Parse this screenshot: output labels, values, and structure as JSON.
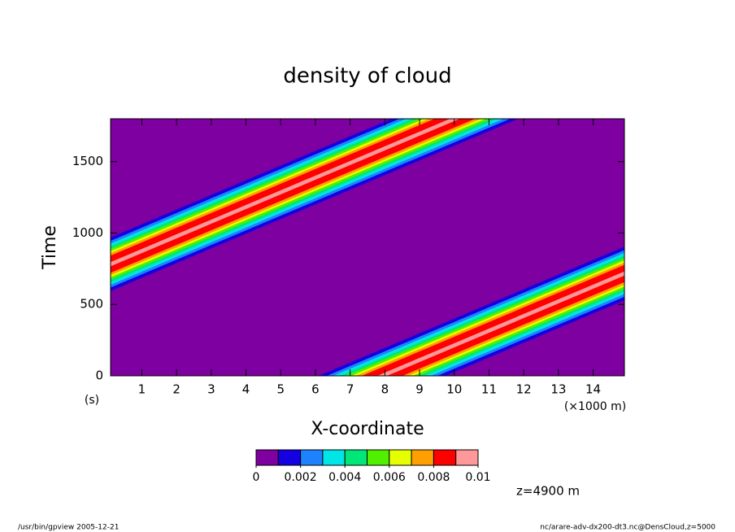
{
  "chart_data": {
    "type": "contour",
    "title": "density of cloud",
    "x_label": "X-coordinate",
    "x_unit": "(×1000 m)",
    "y_label": "Time",
    "y_unit": "(s)",
    "xlim": [
      0.1,
      14.9
    ],
    "xticks": [
      1,
      2,
      3,
      4,
      5,
      6,
      7,
      8,
      9,
      10,
      11,
      12,
      13,
      14
    ],
    "ylim": [
      0,
      1800
    ],
    "yticks": [
      0,
      500,
      1000,
      1500
    ],
    "colorbar": {
      "levels": [
        0,
        0.001,
        0.002,
        0.003,
        0.004,
        0.005,
        0.006,
        0.007,
        0.008,
        0.009,
        0.01
      ],
      "colors": [
        "#7e00a0",
        "#1400e0",
        "#1e82ff",
        "#00e6e6",
        "#00e678",
        "#50f000",
        "#e6ff00",
        "#ffa000",
        "#ff0000",
        "#ff9999"
      ],
      "ticks": [
        0,
        0.002,
        0.004,
        0.006,
        0.008,
        0.01
      ]
    },
    "annotation": "z=4900 m",
    "footer_left": "/usr/bin/gpview  2005-12-21",
    "footer_right": "nc/arare-adv-dx200-dt3.nc@DensCloud,z=5000"
  }
}
